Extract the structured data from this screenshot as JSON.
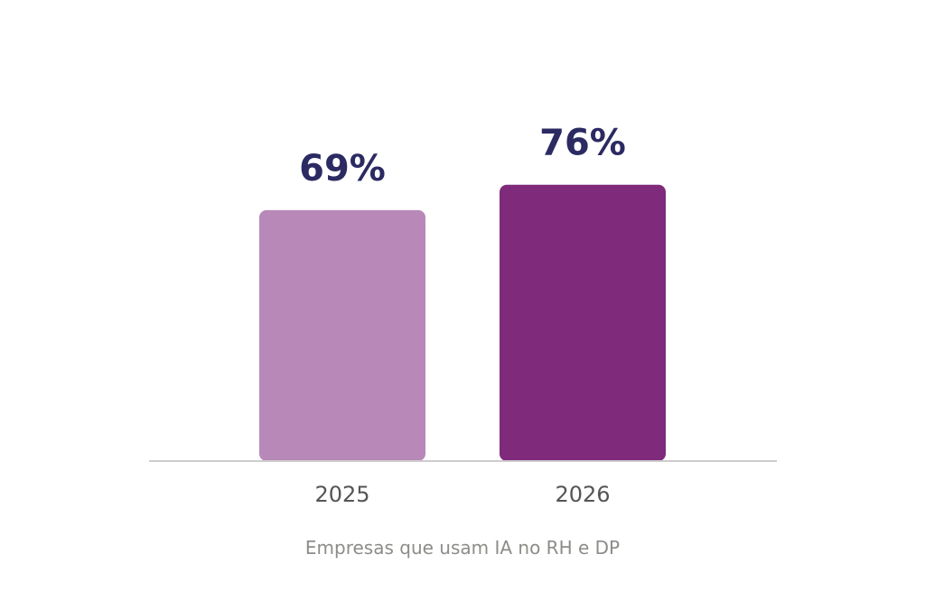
{
  "chart_data": {
    "type": "bar",
    "categories": [
      "2025",
      "2026"
    ],
    "values": [
      69,
      76
    ],
    "value_labels": [
      "69%",
      "76%"
    ],
    "title": "",
    "xlabel": "Empresas que usam IA no RH e DP",
    "ylabel": "",
    "ylim": [
      0,
      100
    ],
    "grid": false,
    "legend": "none",
    "colors": {
      "bars": [
        "#b889b8",
        "#7f2a7b"
      ],
      "value_label": "#2b2a62",
      "tick_label": "#555555",
      "axis_caption": "#8c8c88",
      "baseline": "#cccccc"
    }
  }
}
